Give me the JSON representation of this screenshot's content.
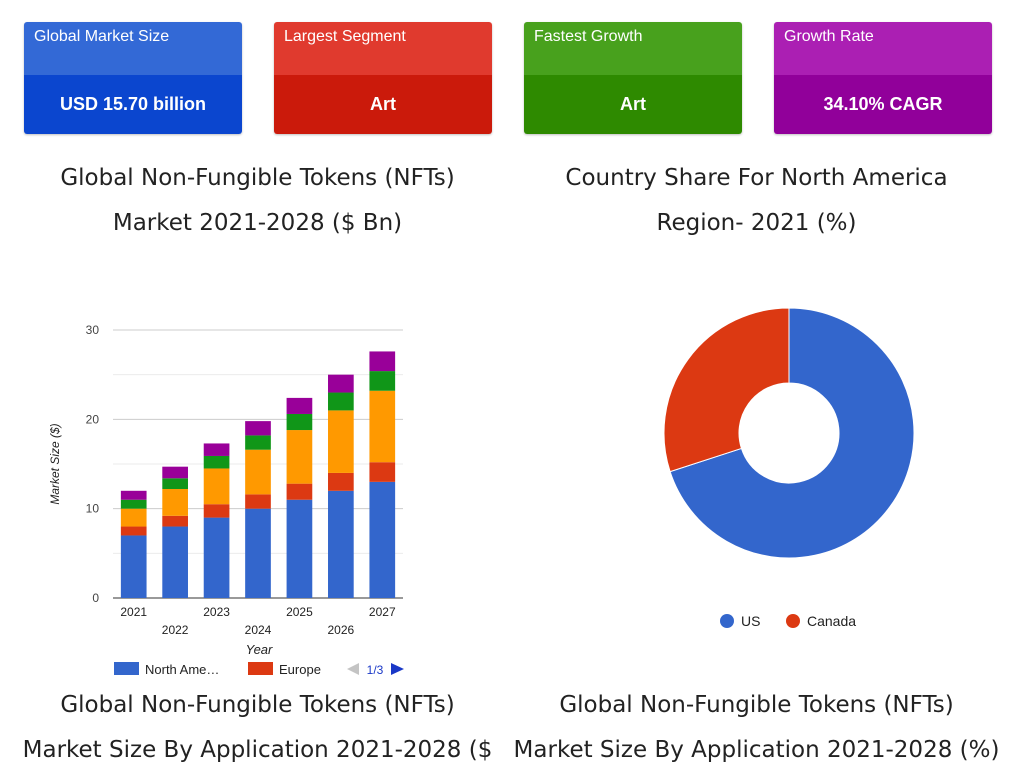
{
  "cards": [
    {
      "label": "Global Market Size",
      "value": "USD 15.70 billion",
      "top_color": "#3369d6",
      "bottom_color": "#0b46cf"
    },
    {
      "label": "Largest Segment",
      "value": "Art",
      "top_color": "#e03a2e",
      "bottom_color": "#cb1a0b"
    },
    {
      "label": "Fastest Growth",
      "value": "Art",
      "top_color": "#48a11d",
      "bottom_color": "#2e8a00"
    },
    {
      "label": "Growth Rate",
      "value": "34.10% CAGR",
      "top_color": "#ab1fb3",
      "bottom_color": "#91009a"
    }
  ],
  "headings": {
    "left_top": [
      "Global Non-Fungible Tokens (NFTs)",
      "Market 2021-2028 ($ Bn)"
    ],
    "right_top": [
      "Country Share For North America",
      "Region- 2021 (%)"
    ],
    "left_bottom": [
      "Global Non-Fungible Tokens (NFTs)",
      "Market Size By Application 2021-2028 ($"
    ],
    "right_bottom": [
      "Global Non-Fungible Tokens (NFTs)",
      "Market Size By Application 2021-2028 (%)"
    ]
  },
  "chart_data": [
    {
      "type": "bar",
      "stacked": true,
      "categories": [
        "2021",
        "2022",
        "2023",
        "2024",
        "2025",
        "2026",
        "2027"
      ],
      "xlabel": "Year",
      "ylabel": "Market Size ($)",
      "ylim": [
        0,
        30
      ],
      "yticks": [
        0,
        10,
        20,
        30
      ],
      "grid": true,
      "series": [
        {
          "name": "North America",
          "color": "#3366cc",
          "values": [
            7,
            8,
            9,
            10,
            11,
            12,
            13
          ]
        },
        {
          "name": "Europe",
          "color": "#dc3912",
          "values": [
            1,
            1.2,
            1.5,
            1.6,
            1.8,
            2,
            2.2
          ]
        },
        {
          "name": "",
          "color": "#ff9900",
          "values": [
            2,
            3,
            4,
            5,
            6,
            7,
            8
          ]
        },
        {
          "name": "",
          "color": "#109618",
          "values": [
            1,
            1.2,
            1.4,
            1.6,
            1.8,
            2,
            2.2
          ]
        },
        {
          "name": "",
          "color": "#990099",
          "values": [
            1,
            1.3,
            1.4,
            1.6,
            1.8,
            2,
            2.2
          ]
        }
      ],
      "legend": {
        "position": "bottom",
        "visible_labels": [
          "North Ame…",
          "Europe"
        ],
        "page": "1/3"
      }
    },
    {
      "type": "pie",
      "donut": true,
      "labels": [
        "US",
        "Canada"
      ],
      "values": [
        70,
        30
      ],
      "colors": [
        "#3366cc",
        "#dc3912"
      ],
      "legend": {
        "position": "bottom"
      }
    }
  ]
}
